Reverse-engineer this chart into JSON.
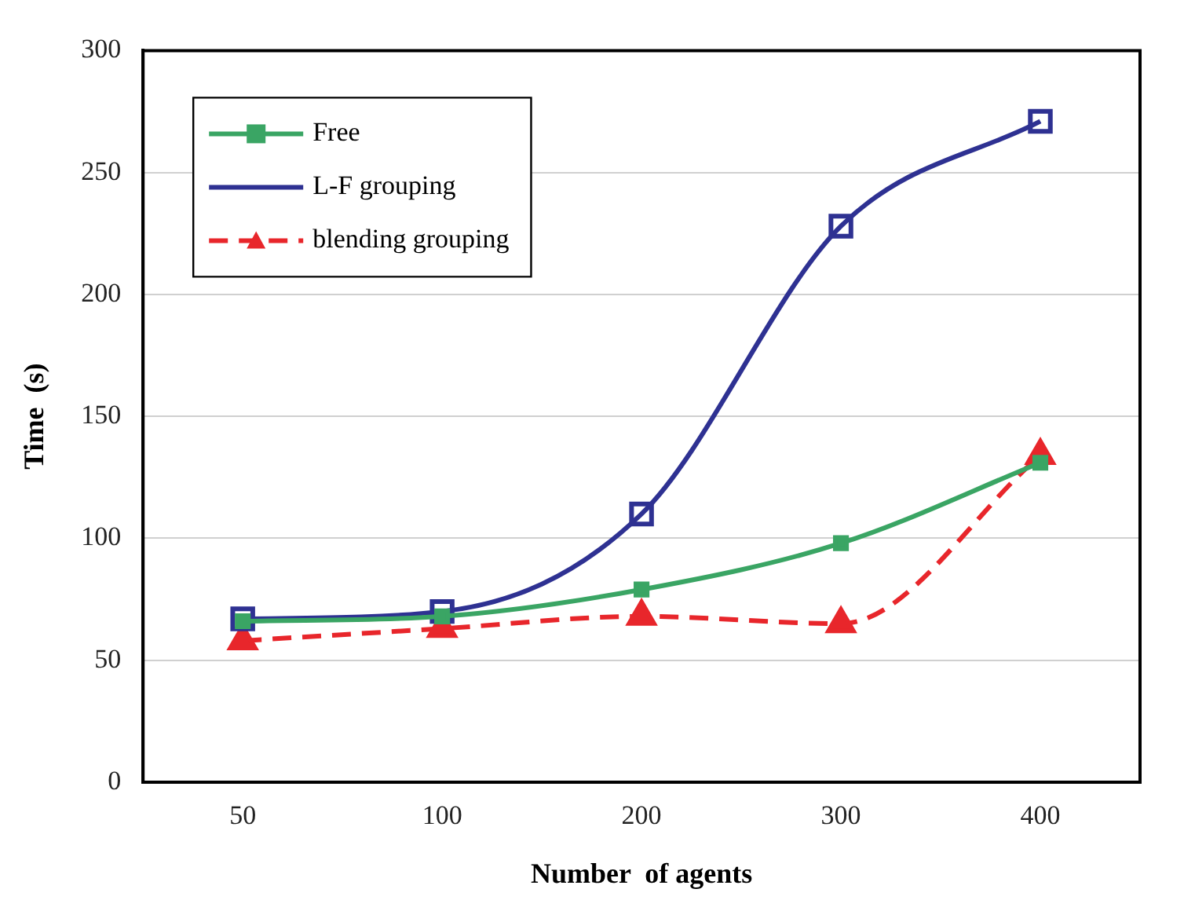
{
  "chart_data": {
    "type": "line",
    "xlabel": "Number  of agents",
    "ylabel": "Time  (s)",
    "categories": [
      "50",
      "100",
      "200",
      "300",
      "400"
    ],
    "series": [
      {
        "name": "Free",
        "color": "#3aa564",
        "marker": "square",
        "line_style": "solid",
        "values": [
          66,
          68,
          79,
          98,
          131
        ]
      },
      {
        "name": "L-F grouping",
        "color": "#2e3192",
        "marker": "square",
        "line_style": "solid",
        "values": [
          67,
          70,
          110,
          228,
          271
        ]
      },
      {
        "name": "blending grouping",
        "color": "#e8262b",
        "marker": "triangle",
        "line_style": "dashed",
        "values": [
          58,
          63,
          68,
          65,
          134
        ]
      }
    ],
    "ylim": [
      0,
      300
    ],
    "yticks": [
      0,
      50,
      100,
      150,
      200,
      250,
      300
    ],
    "grid": "y",
    "legend": "top left"
  }
}
